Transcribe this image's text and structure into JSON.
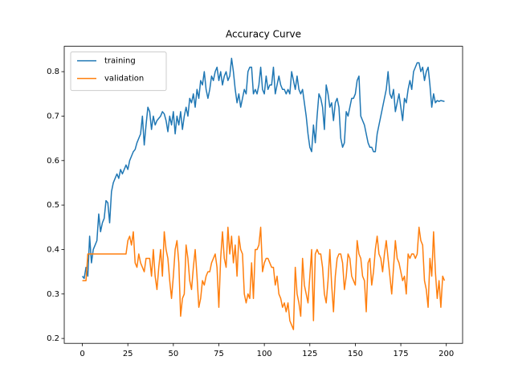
{
  "chart_data": {
    "type": "line",
    "title": "Accuracy Curve",
    "x": [
      0,
      1,
      2,
      3,
      4,
      5,
      6,
      7,
      8,
      9,
      10,
      11,
      12,
      13,
      14,
      15,
      16,
      17,
      18,
      19,
      20,
      21,
      22,
      23,
      24,
      25,
      26,
      27,
      28,
      29,
      30,
      31,
      32,
      33,
      34,
      35,
      36,
      37,
      38,
      39,
      40,
      41,
      42,
      43,
      44,
      45,
      46,
      47,
      48,
      49,
      50,
      51,
      52,
      53,
      54,
      55,
      56,
      57,
      58,
      59,
      60,
      61,
      62,
      63,
      64,
      65,
      66,
      67,
      68,
      69,
      70,
      71,
      72,
      73,
      74,
      75,
      76,
      77,
      78,
      79,
      80,
      81,
      82,
      83,
      84,
      85,
      86,
      87,
      88,
      89,
      90,
      91,
      92,
      93,
      94,
      95,
      96,
      97,
      98,
      99,
      100,
      101,
      102,
      103,
      104,
      105,
      106,
      107,
      108,
      109,
      110,
      111,
      112,
      113,
      114,
      115,
      116,
      117,
      118,
      119,
      120,
      121,
      122,
      123,
      124,
      125,
      126,
      127,
      128,
      129,
      130,
      131,
      132,
      133,
      134,
      135,
      136,
      137,
      138,
      139,
      140,
      141,
      142,
      143,
      144,
      145,
      146,
      147,
      148,
      149,
      150,
      151,
      152,
      153,
      154,
      155,
      156,
      157,
      158,
      159,
      160,
      161,
      162,
      163,
      164,
      165,
      166,
      167,
      168,
      169,
      170,
      171,
      172,
      173,
      174,
      175,
      176,
      177,
      178,
      179,
      180,
      181,
      182,
      183,
      184,
      185,
      186,
      187,
      188,
      189,
      190,
      191,
      192,
      193,
      194,
      195,
      196,
      197,
      198,
      199
    ],
    "series": [
      {
        "name": "training",
        "color": "#1f77b4",
        "values": [
          0.34,
          0.335,
          0.36,
          0.34,
          0.43,
          0.37,
          0.4,
          0.41,
          0.42,
          0.48,
          0.44,
          0.46,
          0.47,
          0.51,
          0.505,
          0.46,
          0.53,
          0.55,
          0.56,
          0.57,
          0.56,
          0.58,
          0.57,
          0.58,
          0.59,
          0.58,
          0.6,
          0.61,
          0.62,
          0.625,
          0.64,
          0.65,
          0.66,
          0.7,
          0.635,
          0.68,
          0.72,
          0.71,
          0.67,
          0.7,
          0.68,
          0.69,
          0.695,
          0.7,
          0.71,
          0.705,
          0.69,
          0.665,
          0.7,
          0.68,
          0.71,
          0.66,
          0.7,
          0.68,
          0.71,
          0.67,
          0.7,
          0.72,
          0.7,
          0.74,
          0.73,
          0.75,
          0.72,
          0.76,
          0.74,
          0.78,
          0.77,
          0.8,
          0.76,
          0.74,
          0.76,
          0.79,
          0.78,
          0.8,
          0.81,
          0.78,
          0.8,
          0.77,
          0.79,
          0.8,
          0.78,
          0.79,
          0.83,
          0.8,
          0.76,
          0.73,
          0.75,
          0.72,
          0.74,
          0.76,
          0.75,
          0.8,
          0.81,
          0.81,
          0.75,
          0.76,
          0.75,
          0.77,
          0.81,
          0.76,
          0.75,
          0.79,
          0.76,
          0.77,
          0.77,
          0.81,
          0.75,
          0.77,
          0.79,
          0.77,
          0.76,
          0.76,
          0.75,
          0.76,
          0.75,
          0.8,
          0.78,
          0.76,
          0.79,
          0.76,
          0.75,
          0.76,
          0.73,
          0.7,
          0.66,
          0.63,
          0.62,
          0.68,
          0.64,
          0.7,
          0.75,
          0.74,
          0.72,
          0.67,
          0.77,
          0.75,
          0.72,
          0.73,
          0.69,
          0.73,
          0.74,
          0.72,
          0.65,
          0.63,
          0.64,
          0.71,
          0.7,
          0.72,
          0.74,
          0.74,
          0.75,
          0.78,
          0.79,
          0.7,
          0.69,
          0.68,
          0.66,
          0.64,
          0.63,
          0.63,
          0.62,
          0.62,
          0.66,
          0.68,
          0.7,
          0.72,
          0.74,
          0.76,
          0.8,
          0.75,
          0.74,
          0.76,
          0.71,
          0.73,
          0.75,
          0.72,
          0.69,
          0.74,
          0.73,
          0.76,
          0.78,
          0.76,
          0.8,
          0.81,
          0.82,
          0.82,
          0.8,
          0.81,
          0.78,
          0.8,
          0.81,
          0.77,
          0.72,
          0.75,
          0.73,
          0.735,
          0.733,
          0.735,
          0.734,
          0.733
        ]
      },
      {
        "name": "validation",
        "color": "#ff7f0e",
        "values": [
          0.33,
          0.33,
          0.33,
          0.39,
          0.39,
          0.39,
          0.39,
          0.39,
          0.39,
          0.39,
          0.39,
          0.39,
          0.39,
          0.39,
          0.39,
          0.39,
          0.39,
          0.39,
          0.39,
          0.39,
          0.39,
          0.39,
          0.39,
          0.39,
          0.39,
          0.42,
          0.43,
          0.41,
          0.44,
          0.37,
          0.36,
          0.39,
          0.37,
          0.36,
          0.35,
          0.38,
          0.38,
          0.38,
          0.34,
          0.4,
          0.34,
          0.31,
          0.36,
          0.4,
          0.34,
          0.44,
          0.4,
          0.38,
          0.33,
          0.29,
          0.34,
          0.4,
          0.42,
          0.37,
          0.25,
          0.29,
          0.3,
          0.41,
          0.38,
          0.33,
          0.31,
          0.36,
          0.4,
          0.34,
          0.27,
          0.29,
          0.33,
          0.32,
          0.34,
          0.35,
          0.35,
          0.37,
          0.38,
          0.39,
          0.36,
          0.27,
          0.38,
          0.44,
          0.38,
          0.36,
          0.45,
          0.39,
          0.43,
          0.37,
          0.41,
          0.34,
          0.43,
          0.4,
          0.39,
          0.3,
          0.28,
          0.3,
          0.29,
          0.37,
          0.29,
          0.4,
          0.4,
          0.41,
          0.45,
          0.35,
          0.37,
          0.38,
          0.38,
          0.37,
          0.36,
          0.36,
          0.32,
          0.34,
          0.3,
          0.29,
          0.27,
          0.28,
          0.26,
          0.28,
          0.24,
          0.23,
          0.22,
          0.36,
          0.3,
          0.28,
          0.25,
          0.38,
          0.32,
          0.3,
          0.28,
          0.34,
          0.4,
          0.24,
          0.39,
          0.4,
          0.39,
          0.39,
          0.36,
          0.3,
          0.28,
          0.33,
          0.4,
          0.32,
          0.26,
          0.34,
          0.38,
          0.39,
          0.39,
          0.37,
          0.31,
          0.34,
          0.39,
          0.38,
          0.34,
          0.33,
          0.32,
          0.42,
          0.39,
          0.38,
          0.34,
          0.33,
          0.26,
          0.37,
          0.38,
          0.32,
          0.35,
          0.4,
          0.43,
          0.39,
          0.38,
          0.35,
          0.39,
          0.42,
          0.38,
          0.34,
          0.3,
          0.36,
          0.42,
          0.38,
          0.37,
          0.35,
          0.33,
          0.34,
          0.3,
          0.39,
          0.38,
          0.39,
          0.39,
          0.38,
          0.39,
          0.45,
          0.42,
          0.41,
          0.33,
          0.31,
          0.27,
          0.38,
          0.34,
          0.44,
          0.35,
          0.29,
          0.33,
          0.27,
          0.34,
          0.33
        ]
      }
    ],
    "xlim": [
      -9.95,
      208.95
    ],
    "xticks": [
      0,
      25,
      50,
      75,
      100,
      125,
      150,
      175,
      200
    ],
    "ylim": [
      0.189,
      0.857
    ],
    "yticks": [
      0.2,
      0.3,
      0.4,
      0.5,
      0.6,
      0.7,
      0.8
    ],
    "legend": "upper left"
  }
}
